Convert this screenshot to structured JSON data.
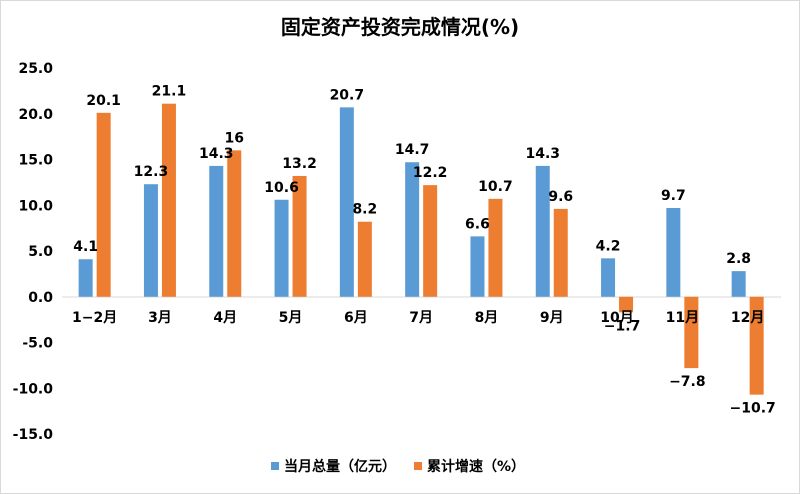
{
  "chart_data": {
    "type": "bar",
    "title": "固定资产投资完成情况(%)",
    "categories": [
      "1−2月",
      "3月",
      "4月",
      "5月",
      "6月",
      "7月",
      "8月",
      "9月",
      "10月",
      "11月",
      "12月"
    ],
    "series": [
      {
        "name": "当月总量（亿元）",
        "color": "#5b9bd5",
        "values": [
          4.1,
          12.3,
          14.3,
          10.6,
          20.7,
          14.7,
          6.6,
          14.3,
          4.2,
          9.7,
          2.8
        ],
        "labels": [
          "4.1",
          "12.3",
          "14.3",
          "10.6",
          "20.7",
          "14.7",
          "6.6",
          "14.3",
          "4.2",
          "9.7",
          "2.8"
        ]
      },
      {
        "name": "累计增速（%）",
        "color": "#ed7d31",
        "values": [
          20.1,
          21.1,
          16,
          13.2,
          8.2,
          12.2,
          10.7,
          9.6,
          -1.7,
          -7.8,
          -10.7
        ],
        "labels": [
          "20.1",
          "21.1",
          "16",
          "13.2",
          "8.2",
          "12.2",
          "10.7",
          "9.6",
          "−1.7",
          "−7.8",
          "−10.7"
        ]
      }
    ],
    "yticks": [
      "25.0",
      "20.0",
      "15.0",
      "10.0",
      "5.0",
      "0.0",
      "-5.0",
      "-10.0",
      "-15.0"
    ],
    "ylim": [
      -15,
      25
    ],
    "grid": false,
    "legend_position": "bottom"
  }
}
